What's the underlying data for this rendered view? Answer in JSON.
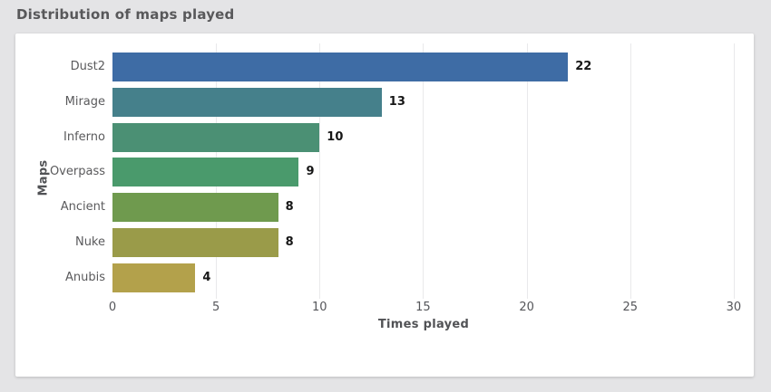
{
  "page": {
    "background_color": "#e4e4e6",
    "card_background": "#ffffff"
  },
  "header": {
    "title": "Distribution of maps played",
    "title_color": "#58585a"
  },
  "chart_data": {
    "type": "bar",
    "orientation": "horizontal",
    "title": "Distribution of maps played",
    "categories": [
      "Dust2",
      "Mirage",
      "Inferno",
      "Overpass",
      "Ancient",
      "Nuke",
      "Anubis"
    ],
    "values": [
      22,
      13,
      10,
      9,
      8,
      8,
      4
    ],
    "value_labels": [
      "22",
      "13",
      "10",
      "9",
      "8",
      "8",
      "4"
    ],
    "bar_colors": [
      "#3e6ca5",
      "#45808b",
      "#4b9074",
      "#4a9a6c",
      "#6f9a4e",
      "#9a9b49",
      "#b3a14b"
    ],
    "xlabel": "Times played",
    "ylabel": "Maps",
    "xticks": [
      0,
      5,
      10,
      15,
      20,
      25,
      30
    ],
    "xlim": [
      0,
      30
    ],
    "grid": "vertical",
    "gridline_color": "#e9e9eb",
    "legend": "none"
  }
}
